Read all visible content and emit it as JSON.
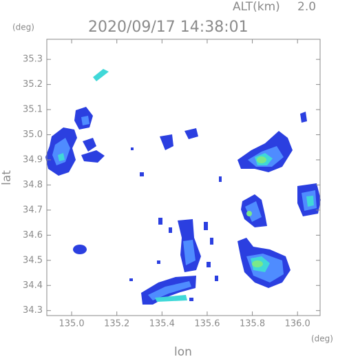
{
  "chart_data": {
    "type": "map",
    "title": "2020/09/17 14:38:01",
    "alt_label": "ALT(km)",
    "alt_value": "2.0",
    "y_unit": "(deg)",
    "x_unit": "(deg)",
    "xlabel": "lon",
    "ylabel": "lat",
    "xlim": [
      134.89,
      136.1
    ],
    "ylim": [
      34.28,
      35.38
    ],
    "xticks": [
      {
        "value": 135.0,
        "label": "135.0"
      },
      135.2,
      135.4,
      135.6,
      135.8,
      {
        "value": 136.0,
        "label": "136.0"
      }
    ],
    "yticks": [
      34.3,
      34.4,
      34.5,
      34.6,
      34.7,
      34.8,
      34.9,
      {
        "value": 35.0,
        "label": "35.0"
      },
      35.1,
      35.2,
      35.3
    ]
  }
}
